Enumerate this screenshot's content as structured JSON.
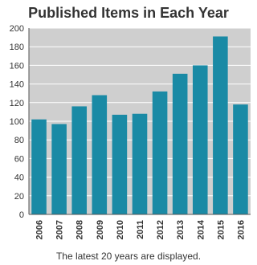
{
  "chart_data": {
    "type": "bar",
    "title": "Published Items in Each Year",
    "categories": [
      "2006",
      "2007",
      "2008",
      "2009",
      "2010",
      "2011",
      "2012",
      "2013",
      "2014",
      "2015",
      "2016"
    ],
    "values": [
      102,
      97,
      116,
      128,
      107,
      108,
      132,
      151,
      160,
      191,
      118
    ],
    "ylim": [
      0,
      200
    ],
    "yticks": [
      0,
      20,
      40,
      60,
      80,
      100,
      120,
      140,
      160,
      180,
      200
    ],
    "grid": true,
    "xlabel": "",
    "ylabel": ""
  },
  "footnote": "The latest 20 years are displayed.",
  "colors": {
    "bar": "#1a8aa5",
    "plot_background": "#cfcfcf",
    "grid": "#ffffff",
    "axis": "#555555",
    "text": "#333333"
  }
}
